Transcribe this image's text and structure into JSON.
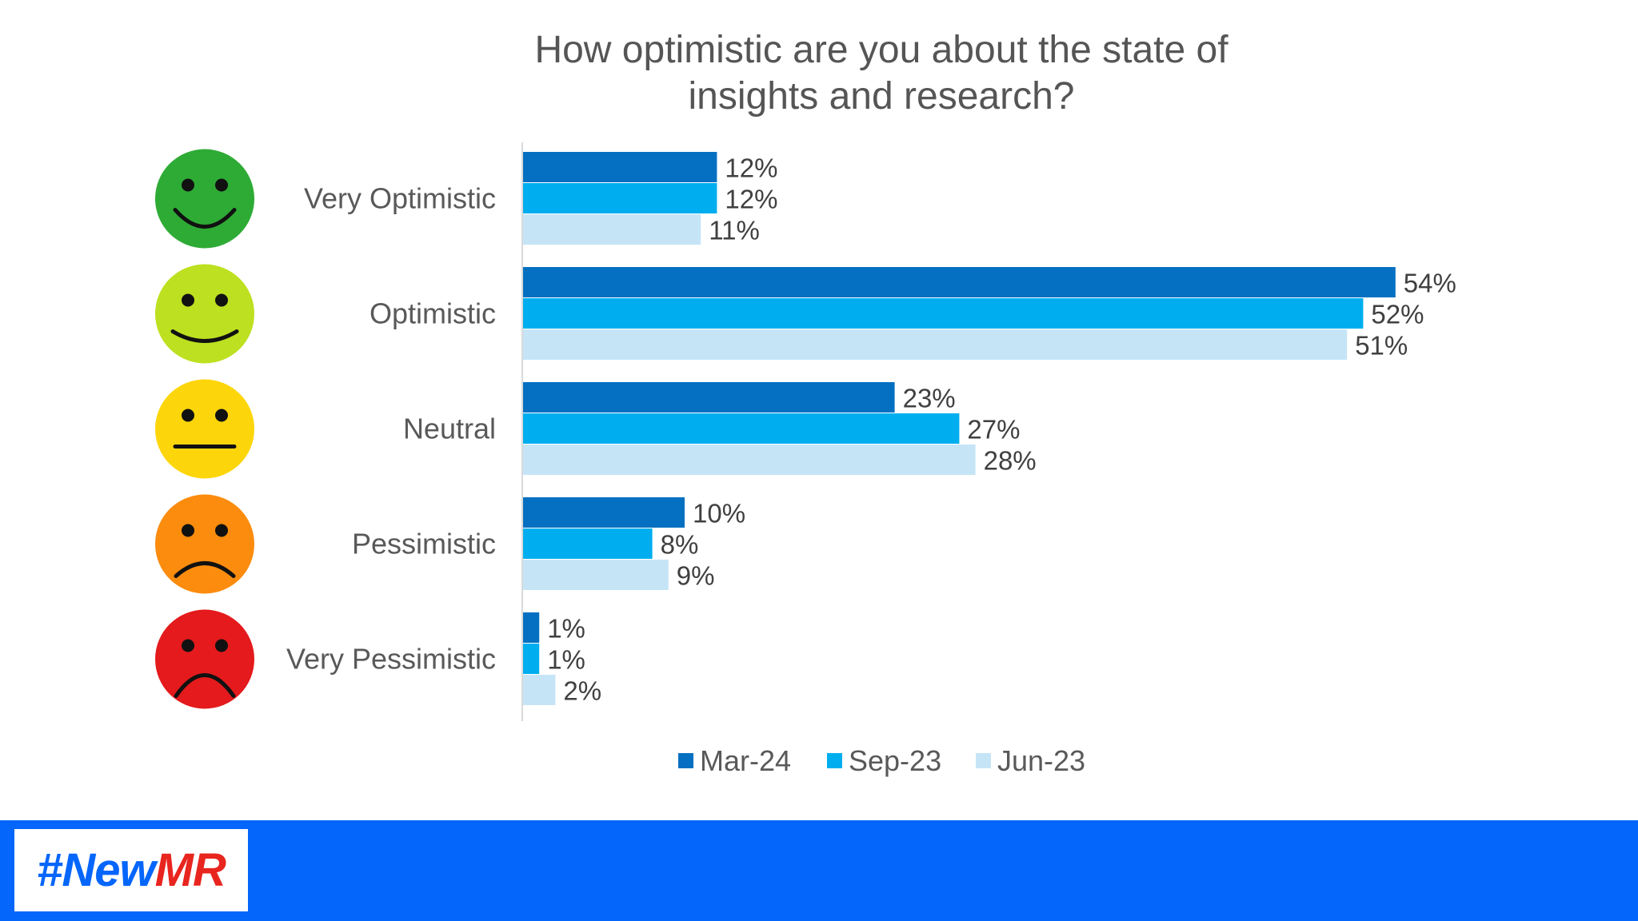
{
  "chart_data": {
    "type": "bar",
    "orientation": "horizontal",
    "title": "How optimistic are you about the state of insights and research?",
    "title_lines": [
      "How optimistic are you about the state of",
      "insights and research?"
    ],
    "categories": [
      "Very Optimistic",
      "Optimistic",
      "Neutral",
      "Pessimistic",
      "Very Pessimistic"
    ],
    "series": [
      {
        "name": "Mar-24",
        "color": "#0570c1",
        "values": [
          12,
          54,
          23,
          10,
          1
        ]
      },
      {
        "name": "Sep-23",
        "color": "#00aeef",
        "values": [
          12,
          52,
          27,
          8,
          1
        ]
      },
      {
        "name": "Jun-23",
        "color": "#c5e5f6",
        "values": [
          11,
          51,
          28,
          9,
          2
        ]
      }
    ],
    "value_suffix": "%",
    "xlim": [
      0,
      60
    ],
    "grid": false,
    "legend_position": "bottom",
    "category_icons": [
      {
        "name": "very-happy-face-icon",
        "color": "#2eab35",
        "mouth": "big-smile"
      },
      {
        "name": "happy-face-icon",
        "color": "#bde020",
        "mouth": "smile"
      },
      {
        "name": "neutral-face-icon",
        "color": "#fdd50b",
        "mouth": "flat"
      },
      {
        "name": "sad-face-icon",
        "color": "#fb8c0e",
        "mouth": "frown"
      },
      {
        "name": "very-sad-face-icon",
        "color": "#e41a1c",
        "mouth": "big-frown"
      }
    ]
  },
  "footer": {
    "hashtag_part1": "#New",
    "hashtag_part2": "MR",
    "background_color": "#0566fb"
  }
}
